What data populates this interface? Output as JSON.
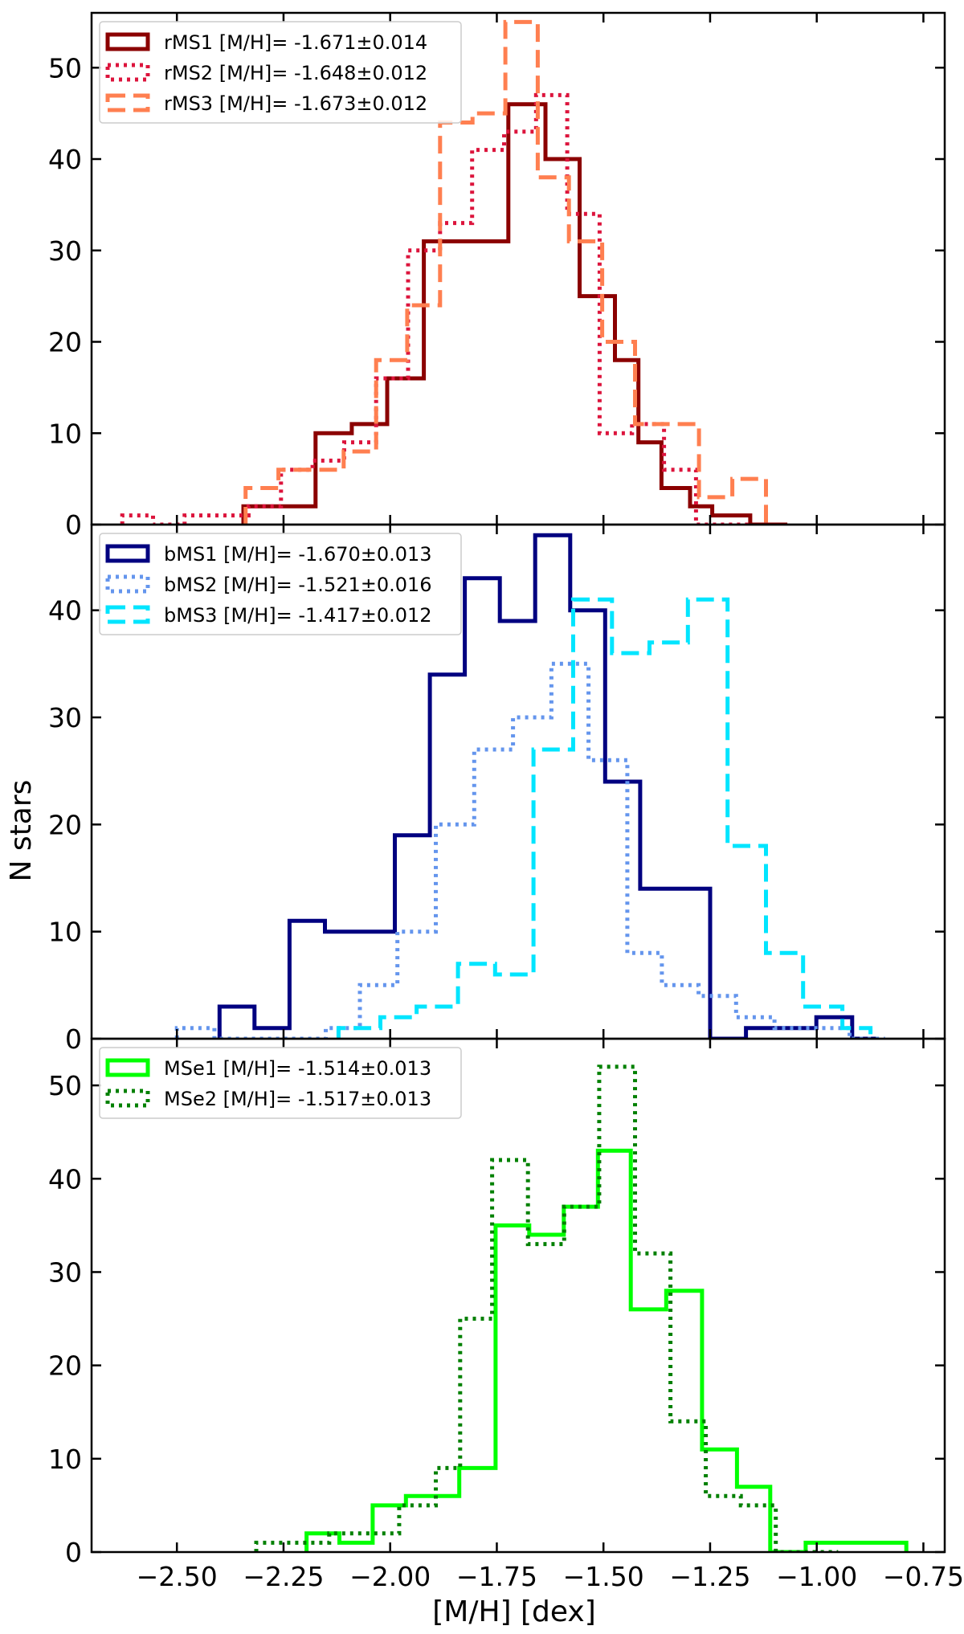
{
  "figure": {
    "xlabel": "[M/H] [dex]",
    "ylabel": "N stars"
  },
  "chart_data": [
    {
      "type": "histogram",
      "panel": "top",
      "xlim": [
        -2.7,
        -0.7
      ],
      "ylim": [
        0,
        56
      ],
      "yticks": [
        0,
        10,
        20,
        30,
        40,
        50
      ],
      "xticks": [
        -2.5,
        -2.25,
        -2.0,
        -1.75,
        -1.5,
        -1.25,
        -1.0,
        -0.75
      ],
      "legend_position": "top-left",
      "series": [
        {
          "name": "rMS1 [M/H]= -1.671±0.014",
          "color": "#8b0000",
          "linestyle": "solid",
          "edges": [
            -2.344,
            -2.175,
            -2.09,
            -2.007,
            -1.921,
            -1.83,
            -1.723,
            -1.636,
            -1.556,
            -1.473,
            -1.418,
            -1.364,
            -1.297,
            -1.245,
            -1.156,
            -1.069
          ],
          "counts": [
            2,
            10,
            11,
            16,
            31,
            31,
            46,
            40,
            25,
            18,
            9,
            4,
            2,
            1,
            0
          ]
        },
        {
          "name": "rMS2 [M/H]= -1.648±0.012",
          "color": "#dc143c",
          "linestyle": "dotted",
          "edges": [
            -2.628,
            -2.556,
            -2.482,
            -2.405,
            -2.332,
            -2.256,
            -2.182,
            -2.108,
            -2.033,
            -1.958,
            -1.883,
            -1.808,
            -1.733,
            -1.658,
            -1.585,
            -1.509,
            -1.433,
            -1.358,
            -1.283,
            -1.208,
            -1.15
          ],
          "counts": [
            1,
            0,
            1,
            1,
            2,
            6,
            7,
            9,
            16,
            30,
            33,
            41,
            43,
            47,
            34,
            10,
            11,
            6,
            0,
            0
          ]
        },
        {
          "name": "rMS3 [M/H]= -1.673±0.012",
          "color": "#ff7f50",
          "linestyle": "dashed",
          "edges": [
            -2.339,
            -2.262,
            -2.186,
            -2.109,
            -2.033,
            -1.96,
            -1.883,
            -1.807,
            -1.73,
            -1.654,
            -1.581,
            -1.503,
            -1.426,
            -1.35,
            -1.276,
            -1.198,
            -1.119
          ],
          "counts": [
            4,
            6,
            6,
            8,
            18,
            24,
            44,
            45,
            55,
            38,
            31,
            20,
            11,
            11,
            3,
            5
          ]
        }
      ]
    },
    {
      "type": "histogram",
      "panel": "middle",
      "xlim": [
        -2.7,
        -0.7
      ],
      "ylim": [
        0,
        48
      ],
      "yticks": [
        0,
        10,
        20,
        30,
        40
      ],
      "xticks": [
        -2.5,
        -2.25,
        -2.0,
        -1.75,
        -1.5,
        -1.25,
        -1.0,
        -0.75
      ],
      "legend_position": "top-left",
      "series": [
        {
          "name": "bMS1 [M/H]= -1.670±0.013",
          "color": "#000080",
          "linestyle": "solid",
          "edges": [
            -2.4,
            -2.318,
            -2.236,
            -2.153,
            -2.071,
            -1.989,
            -1.907,
            -1.825,
            -1.743,
            -1.66,
            -1.578,
            -1.496,
            -1.414,
            -1.332,
            -1.25,
            -1.166,
            -1.084,
            -1.001,
            -0.917,
            -0.855
          ],
          "counts": [
            3,
            1,
            11,
            10,
            10,
            19,
            34,
            43,
            39,
            47,
            40,
            24,
            14,
            14,
            0,
            1,
            1,
            2,
            0
          ]
        },
        {
          "name": "bMS2 [M/H]= -1.521±0.016",
          "color": "#6495ed",
          "linestyle": "dotted",
          "edges": [
            -2.5,
            -2.412,
            -2.322,
            -2.241,
            -2.151,
            -2.071,
            -1.983,
            -1.893,
            -1.803,
            -1.712,
            -1.622,
            -1.535,
            -1.444,
            -1.363,
            -1.277,
            -1.189,
            -1.099,
            -1.012,
            -0.923,
            -0.84
          ],
          "counts": [
            1,
            0,
            0,
            0,
            1,
            5,
            10,
            20,
            27,
            30,
            35,
            26,
            8,
            5,
            4,
            2,
            1,
            1,
            0
          ]
        },
        {
          "name": "bMS3 [M/H]= -1.417±0.012",
          "color": "#00e5ff",
          "linestyle": "dashed",
          "edges": [
            -2.121,
            -2.023,
            -1.938,
            -1.841,
            -1.754,
            -1.664,
            -1.571,
            -1.48,
            -1.392,
            -1.302,
            -1.209,
            -1.119,
            -1.032,
            -0.94,
            -0.874
          ],
          "counts": [
            1,
            2,
            3,
            7,
            6,
            27,
            41,
            36,
            37,
            41,
            18,
            8,
            3,
            1
          ]
        }
      ]
    },
    {
      "type": "histogram",
      "panel": "bottom",
      "xlim": [
        -2.7,
        -0.7
      ],
      "ylim": [
        0,
        55
      ],
      "yticks": [
        0,
        10,
        20,
        30,
        40,
        50
      ],
      "xticks": [
        -2.5,
        -2.25,
        -2.0,
        -1.75,
        -1.5,
        -1.25,
        -1.0,
        -0.75
      ],
      "legend_position": "top-left",
      "series": [
        {
          "name": "MSe1 [M/H]= -1.514±0.013",
          "color": "#00ff00",
          "linestyle": "solid",
          "edges": [
            -2.196,
            -2.119,
            -2.041,
            -1.963,
            -1.838,
            -1.753,
            -1.674,
            -1.593,
            -1.513,
            -1.436,
            -1.353,
            -1.269,
            -1.187,
            -1.109,
            -1.026,
            -0.95,
            -0.872,
            -0.79
          ],
          "counts": [
            2,
            1,
            5,
            6,
            9,
            35,
            34,
            37,
            43,
            26,
            28,
            11,
            7,
            0,
            1,
            1,
            1
          ]
        },
        {
          "name": "MSe2 [M/H]= -1.517±0.013",
          "color": "#008000",
          "linestyle": "dotted",
          "edges": [
            -2.314,
            -2.229,
            -2.143,
            -2.061,
            -1.979,
            -1.893,
            -1.836,
            -1.761,
            -1.677,
            -1.592,
            -1.51,
            -1.426,
            -1.343,
            -1.26,
            -1.178,
            -1.096,
            -1.013,
            -0.95
          ],
          "counts": [
            1,
            1,
            2,
            2,
            5,
            9,
            25,
            42,
            33,
            37,
            52,
            32,
            14,
            6,
            5,
            0,
            0
          ]
        }
      ]
    }
  ]
}
